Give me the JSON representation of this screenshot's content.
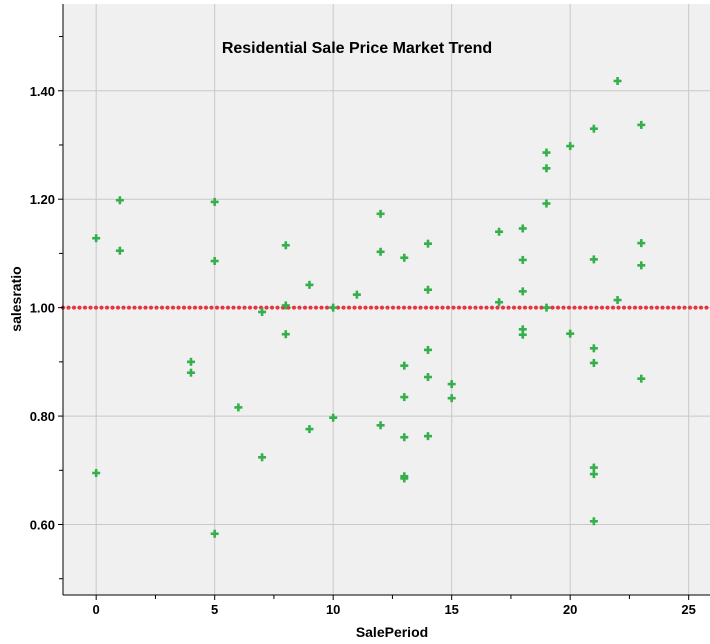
{
  "chart_data": {
    "type": "scatter",
    "title": "Residential Sale Price Market Trend",
    "xlabel": "SalePeriod",
    "ylabel": "salesratio",
    "xlim": [
      -1.4,
      25.9
    ],
    "ylim": [
      0.47,
      1.56
    ],
    "x_ticks": [
      0,
      5,
      10,
      15,
      20,
      25
    ],
    "x_tick_labels": [
      "0",
      "5",
      "10",
      "15",
      "20",
      "25"
    ],
    "x_minor_ticks": [
      2.5,
      7.5,
      12.5,
      17.5,
      22.5
    ],
    "y_ticks": [
      0.6,
      0.8,
      1.0,
      1.2,
      1.4
    ],
    "y_tick_labels": [
      "0.60",
      "0.80",
      "1.00",
      "1.20",
      "1.40"
    ],
    "y_minor_ticks": [
      0.5,
      0.7,
      0.9,
      1.1,
      1.3,
      1.5
    ],
    "grid": true,
    "reference_line": {
      "y": 1.0,
      "style": "dotted",
      "color": "#e8343f"
    },
    "colors": {
      "plot_background": "#f0f0f0",
      "grid": "#c8c8c8",
      "marker": "#33b04b"
    },
    "series": [
      {
        "marker": "plus",
        "x": [
          0,
          0,
          1,
          1,
          4,
          4,
          5,
          5,
          5,
          6,
          7,
          7,
          8,
          8,
          8,
          9,
          9,
          10,
          10,
          11,
          12,
          12,
          12,
          13,
          13,
          13,
          13,
          13,
          13,
          14,
          14,
          14,
          14,
          14,
          15,
          15,
          17,
          17,
          18,
          18,
          18,
          18,
          18,
          19,
          19,
          19,
          19,
          20,
          20,
          21,
          21,
          21,
          21,
          21,
          21,
          21,
          22,
          22,
          23,
          23,
          23,
          23
        ],
        "y": [
          1.128,
          0.695,
          1.198,
          1.105,
          0.9,
          0.88,
          1.195,
          1.086,
          0.583,
          0.816,
          0.992,
          0.724,
          1.115,
          1.004,
          0.951,
          1.042,
          0.776,
          1.0,
          0.797,
          1.024,
          1.173,
          1.103,
          0.783,
          1.092,
          0.893,
          0.835,
          0.761,
          0.689,
          0.685,
          1.118,
          1.033,
          0.922,
          0.872,
          0.763,
          0.859,
          0.833,
          1.14,
          1.01,
          1.146,
          1.088,
          1.03,
          0.96,
          0.95,
          1.286,
          1.257,
          1.192,
          1.0,
          1.298,
          0.952,
          1.33,
          1.089,
          0.925,
          0.898,
          0.705,
          0.693,
          0.606,
          1.418,
          1.014,
          1.337,
          1.119,
          1.078,
          0.869
        ]
      }
    ]
  }
}
